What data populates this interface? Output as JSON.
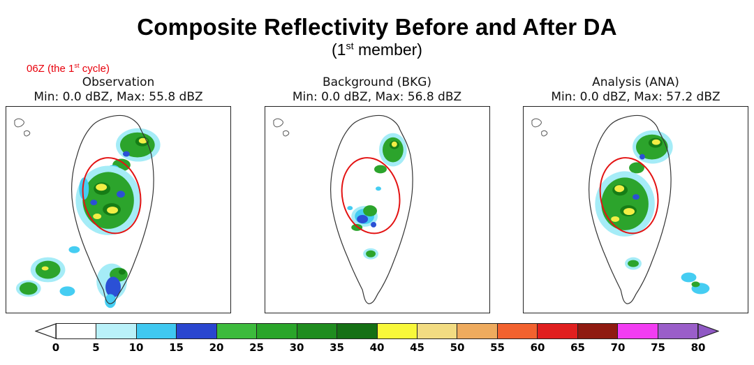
{
  "header": {
    "title": "Composite Reflectivity Before and After DA",
    "subtitle_prefix": "(1",
    "subtitle_sup": "st",
    "subtitle_suffix": " member)",
    "annotation_prefix": "06Z (the 1",
    "annotation_sup": "st",
    "annotation_suffix": " cycle)",
    "annotation_color": "#e8000b"
  },
  "panels": [
    {
      "name": "Observation",
      "stats": "Min: 0.0 dBZ, Max: 55.8 dBZ"
    },
    {
      "name": "Background (BKG)",
      "stats": "Min: 0.0 dBZ, Max: 56.8 dBZ"
    },
    {
      "name": "Analysis (ANA)",
      "stats": "Min: 0.0 dBZ, Max: 57.2 dBZ"
    }
  ],
  "colorbar": {
    "ticks": [
      "0",
      "5",
      "10",
      "15",
      "20",
      "25",
      "30",
      "35",
      "40",
      "45",
      "50",
      "55",
      "60",
      "65",
      "70",
      "75",
      "80"
    ],
    "segment_colors": [
      "#ffffff",
      "#b9f1f9",
      "#3fc8f0",
      "#2a46cf",
      "#3dbb3d",
      "#2aa52a",
      "#1f8c1f",
      "#157015",
      "#f8f83a",
      "#f2dc82",
      "#eeab5e",
      "#f2622f",
      "#e01f1f",
      "#8f1a10",
      "#f23df2",
      "#9a5ec9"
    ],
    "under_arrow_color": "#ffffff",
    "over_arrow_color": "#8f58c4",
    "outline_color": "#222222"
  },
  "accent": {
    "ellipse_color": "#e31212"
  },
  "chart_data": {
    "type": "heatmap",
    "title": "Composite Reflectivity Before and After DA",
    "subtitle": "(1st member)",
    "annotation": "06Z (the 1st cycle)",
    "map_region": "Taiwan",
    "panels": [
      {
        "name": "Observation",
        "min_dBZ": 0.0,
        "max_dBZ": 55.8
      },
      {
        "name": "Background (BKG)",
        "min_dBZ": 0.0,
        "max_dBZ": 56.8
      },
      {
        "name": "Analysis (ANA)",
        "min_dBZ": 0.0,
        "max_dBZ": 57.2
      }
    ],
    "colorbar": {
      "unit": "dBZ",
      "ticks": [
        0,
        5,
        10,
        15,
        20,
        25,
        30,
        35,
        40,
        45,
        50,
        55,
        60,
        65,
        70,
        75,
        80
      ],
      "range": [
        0,
        80
      ],
      "orientation": "horizontal",
      "extend": "both"
    }
  }
}
